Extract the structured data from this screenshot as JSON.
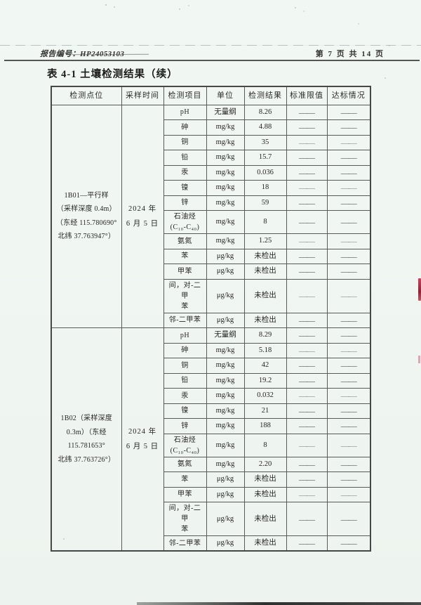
{
  "page": {
    "report_no": "报告编号：HP24053103",
    "page_info": "第 7 页  共 14 页",
    "title": "表 4-1 土壤检测结果（续）"
  },
  "table": {
    "columns": [
      "检测点位",
      "采样时间",
      "检测项目",
      "单位",
      "检测结果",
      "标准限值",
      "达标情况"
    ],
    "sections": [
      {
        "point": "1B01—平行样\n（采样深度 0.4m）\n（东经 115.780690°\n北纬 37.763947°）",
        "time": "2024 年\n6 月 5 日",
        "rows": [
          {
            "item": "pH",
            "unit": "无量纲",
            "result": "8.26",
            "standard": "——",
            "compliance": "——"
          },
          {
            "item": "砷",
            "unit": "mg/kg",
            "result": "4.88",
            "standard": "——",
            "compliance": "——"
          },
          {
            "item": "铜",
            "unit": "mg/kg",
            "result": "35",
            "standard": "——",
            "compliance": "——"
          },
          {
            "item": "铅",
            "unit": "mg/kg",
            "result": "15.7",
            "standard": "——",
            "compliance": "——"
          },
          {
            "item": "汞",
            "unit": "mg/kg",
            "result": "0.036",
            "standard": "——",
            "compliance": "——"
          },
          {
            "item": "镍",
            "unit": "mg/kg",
            "result": "18",
            "standard": "——",
            "compliance": "——"
          },
          {
            "item": "锌",
            "unit": "mg/kg",
            "result": "59",
            "standard": "——",
            "compliance": "——"
          },
          {
            "item": "石油烃\n(C₁₀-C₄₀)",
            "unit": "mg/kg",
            "result": "8",
            "standard": "——",
            "compliance": "——",
            "tall": true
          },
          {
            "item": "氨氮",
            "unit": "mg/kg",
            "result": "1.25",
            "standard": "——",
            "compliance": "——"
          },
          {
            "item": "苯",
            "unit": "μg/kg",
            "result": "未检出",
            "standard": "——",
            "compliance": "——"
          },
          {
            "item": "甲苯",
            "unit": "μg/kg",
            "result": "未检出",
            "standard": "——",
            "compliance": "——"
          },
          {
            "item": "间，对-二甲\n苯",
            "unit": "μg/kg",
            "result": "未检出",
            "standard": "——",
            "compliance": "——",
            "tall": true
          },
          {
            "item": "邻-二甲苯",
            "unit": "μg/kg",
            "result": "未检出",
            "standard": "——",
            "compliance": "——"
          }
        ]
      },
      {
        "point": "1B02（采样深度\n0.3m）（东经\n115.781653°\n北纬 37.763726°）",
        "time": "2024 年\n6 月 5 日",
        "rows": [
          {
            "item": "pH",
            "unit": "无量纲",
            "result": "8.29",
            "standard": "——",
            "compliance": "——"
          },
          {
            "item": "砷",
            "unit": "mg/kg",
            "result": "5.18",
            "standard": "——",
            "compliance": "——"
          },
          {
            "item": "铜",
            "unit": "mg/kg",
            "result": "42",
            "standard": "——",
            "compliance": "——"
          },
          {
            "item": "铅",
            "unit": "mg/kg",
            "result": "19.2",
            "standard": "——",
            "compliance": "——"
          },
          {
            "item": "汞",
            "unit": "mg/kg",
            "result": "0.032",
            "standard": "——",
            "compliance": "——"
          },
          {
            "item": "镍",
            "unit": "mg/kg",
            "result": "21",
            "standard": "——",
            "compliance": "——"
          },
          {
            "item": "锌",
            "unit": "mg/kg",
            "result": "188",
            "standard": "——",
            "compliance": "——"
          },
          {
            "item": "石油烃\n(C₁₀-C₄₀)",
            "unit": "mg/kg",
            "result": "8",
            "standard": "——",
            "compliance": "——",
            "tall": true
          },
          {
            "item": "氨氮",
            "unit": "mg/kg",
            "result": "2.20",
            "standard": "——",
            "compliance": "——"
          },
          {
            "item": "苯",
            "unit": "μg/kg",
            "result": "未检出",
            "standard": "——",
            "compliance": "——"
          },
          {
            "item": "甲苯",
            "unit": "μg/kg",
            "result": "未检出",
            "standard": "——",
            "compliance": "——"
          },
          {
            "item": "间，对-二甲\n苯",
            "unit": "μg/kg",
            "result": "未检出",
            "standard": "——",
            "compliance": "——",
            "tall": true
          },
          {
            "item": "邻-二甲苯",
            "unit": "μg/kg",
            "result": "未检出",
            "standard": "——",
            "compliance": "——"
          }
        ]
      }
    ]
  }
}
